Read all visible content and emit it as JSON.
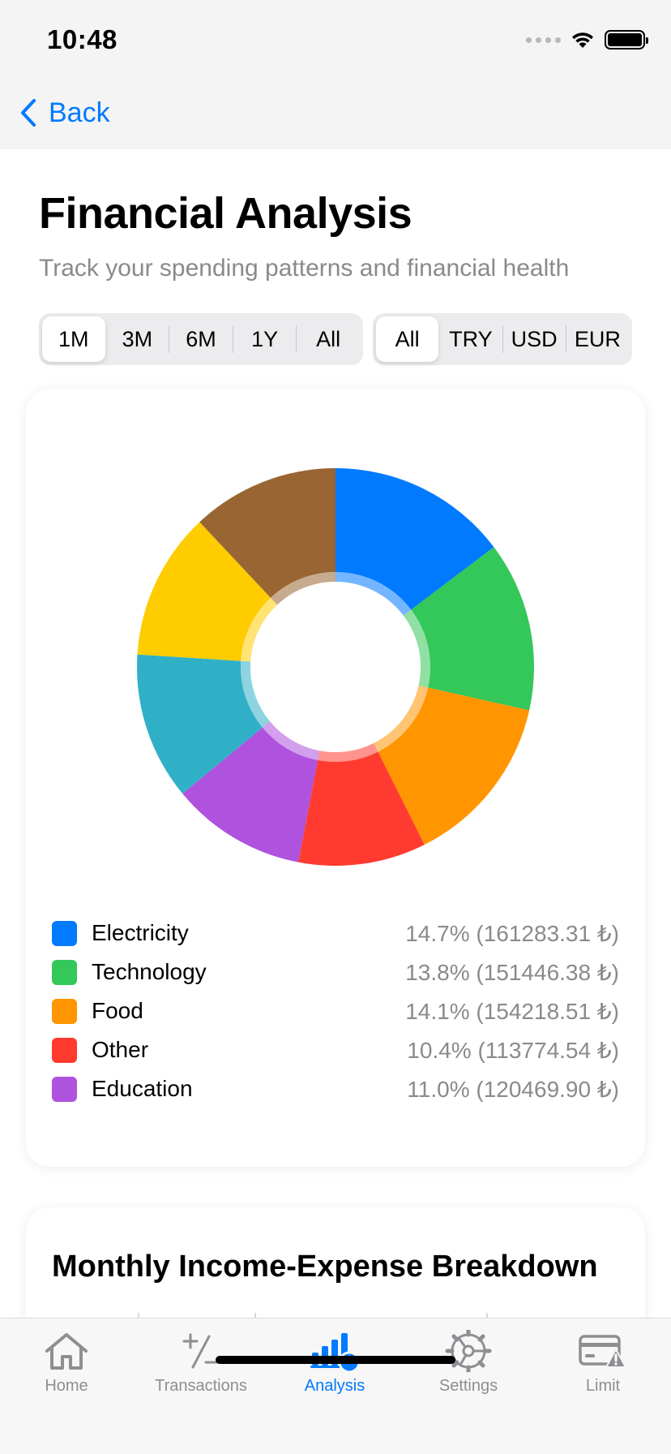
{
  "status": {
    "time": "10:48"
  },
  "nav": {
    "back_label": "Back"
  },
  "header": {
    "title": "Financial Analysis",
    "subtitle": "Track your spending patterns and financial health"
  },
  "period_options": [
    "1M",
    "3M",
    "6M",
    "1Y",
    "All"
  ],
  "period_selected": "1M",
  "currency_options": [
    "All",
    "TRY",
    "USD",
    "EUR"
  ],
  "currency_selected": "All",
  "chart_data": {
    "type": "pie",
    "slices": [
      {
        "label": "Electricity",
        "percent": 14.7,
        "amount": "161283.31",
        "color": "#007aff"
      },
      {
        "label": "Technology",
        "percent": 13.8,
        "amount": "151446.38",
        "color": "#34c759"
      },
      {
        "label": "Food",
        "percent": 14.1,
        "amount": "154218.51",
        "color": "#ff9500"
      },
      {
        "label": "Other",
        "percent": 10.4,
        "amount": "113774.54",
        "color": "#ff3b30"
      },
      {
        "label": "Education",
        "percent": 11.0,
        "amount": "120469.90",
        "color": "#af52de"
      },
      {
        "label": "",
        "percent": 12.0,
        "color": "#30b0c7"
      },
      {
        "label": "",
        "percent": 12.0,
        "color": "#ffcc00"
      },
      {
        "label": "",
        "percent": 12.0,
        "color": "#996633"
      }
    ]
  },
  "legend": [
    {
      "label": "Electricity",
      "value": "14.7% (161283.31 ₺)",
      "color": "#007aff"
    },
    {
      "label": "Technology",
      "value": "13.8% (151446.38 ₺)",
      "color": "#34c759"
    },
    {
      "label": "Food",
      "value": "14.1% (154218.51 ₺)",
      "color": "#ff9500"
    },
    {
      "label": "Other",
      "value": "10.4% (113774.54 ₺)",
      "color": "#ff3b30"
    },
    {
      "label": "Education",
      "value": "11.0% (120469.90 ₺)",
      "color": "#af52de"
    }
  ],
  "breakdown": {
    "title": "Monthly Income-Expense Breakdown"
  },
  "tabs": [
    {
      "label": "Home",
      "icon": "house-icon",
      "active": false
    },
    {
      "label": "Transactions",
      "icon": "plus-minus-icon",
      "active": false
    },
    {
      "label": "Analysis",
      "icon": "chart-bar-icon",
      "active": true
    },
    {
      "label": "Settings",
      "icon": "gear-icon",
      "active": false
    },
    {
      "label": "Limit",
      "icon": "card-warning-icon",
      "active": false
    }
  ],
  "colors": {
    "accent": "#007aff",
    "inactive": "#8e8e93"
  }
}
